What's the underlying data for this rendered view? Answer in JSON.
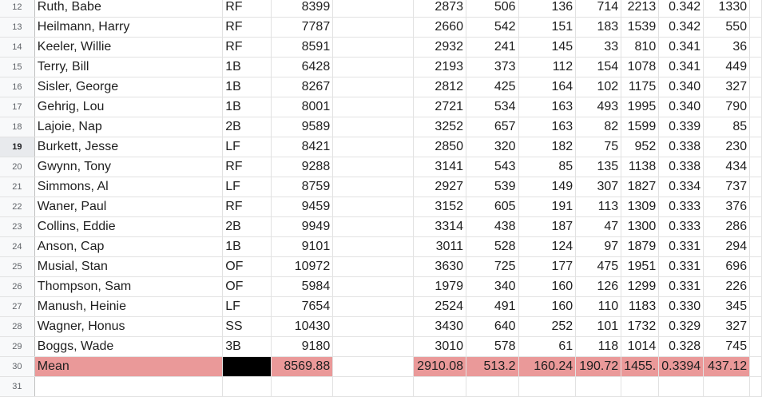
{
  "sheet": {
    "rows": [
      {
        "n": "12",
        "name": "Ruth, Babe",
        "pos": "RF",
        "ab": "8399",
        "h": "2873",
        "d": "506",
        "t": "136",
        "hr": "714",
        "rbi": "2213",
        "avg": "0.342",
        "bb": "1330"
      },
      {
        "n": "13",
        "name": "Heilmann, Harry",
        "pos": "RF",
        "ab": "7787",
        "h": "2660",
        "d": "542",
        "t": "151",
        "hr": "183",
        "rbi": "1539",
        "avg": "0.342",
        "bb": "550"
      },
      {
        "n": "14",
        "name": "Keeler, Willie",
        "pos": "RF",
        "ab": "8591",
        "h": "2932",
        "d": "241",
        "t": "145",
        "hr": "33",
        "rbi": "810",
        "avg": "0.341",
        "bb": "36"
      },
      {
        "n": "15",
        "name": "Terry, Bill",
        "pos": "1B",
        "ab": "6428",
        "h": "2193",
        "d": "373",
        "t": "112",
        "hr": "154",
        "rbi": "1078",
        "avg": "0.341",
        "bb": "449"
      },
      {
        "n": "16",
        "name": "Sisler, George",
        "pos": "1B",
        "ab": "8267",
        "h": "2812",
        "d": "425",
        "t": "164",
        "hr": "102",
        "rbi": "1175",
        "avg": "0.340",
        "bb": "327"
      },
      {
        "n": "17",
        "name": "Gehrig, Lou",
        "pos": "1B",
        "ab": "8001",
        "h": "2721",
        "d": "534",
        "t": "163",
        "hr": "493",
        "rbi": "1995",
        "avg": "0.340",
        "bb": "790"
      },
      {
        "n": "18",
        "name": "Lajoie, Nap",
        "pos": "2B",
        "ab": "9589",
        "h": "3252",
        "d": "657",
        "t": "163",
        "hr": "82",
        "rbi": "1599",
        "avg": "0.339",
        "bb": "85"
      },
      {
        "n": "19",
        "name": "Burkett, Jesse",
        "pos": "LF",
        "ab": "8421",
        "h": "2850",
        "d": "320",
        "t": "182",
        "hr": "75",
        "rbi": "952",
        "avg": "0.338",
        "bb": "230",
        "selected": true
      },
      {
        "n": "20",
        "name": "Gwynn, Tony",
        "pos": "RF",
        "ab": "9288",
        "h": "3141",
        "d": "543",
        "t": "85",
        "hr": "135",
        "rbi": "1138",
        "avg": "0.338",
        "bb": "434"
      },
      {
        "n": "21",
        "name": "Simmons, Al",
        "pos": "LF",
        "ab": "8759",
        "h": "2927",
        "d": "539",
        "t": "149",
        "hr": "307",
        "rbi": "1827",
        "avg": "0.334",
        "bb": "737"
      },
      {
        "n": "22",
        "name": "Waner, Paul",
        "pos": "RF",
        "ab": "9459",
        "h": "3152",
        "d": "605",
        "t": "191",
        "hr": "113",
        "rbi": "1309",
        "avg": "0.333",
        "bb": "376"
      },
      {
        "n": "23",
        "name": "Collins, Eddie",
        "pos": "2B",
        "ab": "9949",
        "h": "3314",
        "d": "438",
        "t": "187",
        "hr": "47",
        "rbi": "1300",
        "avg": "0.333",
        "bb": "286"
      },
      {
        "n": "24",
        "name": "Anson, Cap",
        "pos": "1B",
        "ab": "9101",
        "h": "3011",
        "d": "528",
        "t": "124",
        "hr": "97",
        "rbi": "1879",
        "avg": "0.331",
        "bb": "294"
      },
      {
        "n": "25",
        "name": "Musial, Stan",
        "pos": "OF",
        "ab": "10972",
        "h": "3630",
        "d": "725",
        "t": "177",
        "hr": "475",
        "rbi": "1951",
        "avg": "0.331",
        "bb": "696"
      },
      {
        "n": "26",
        "name": "Thompson, Sam",
        "pos": "OF",
        "ab": "5984",
        "h": "1979",
        "d": "340",
        "t": "160",
        "hr": "126",
        "rbi": "1299",
        "avg": "0.331",
        "bb": "226"
      },
      {
        "n": "27",
        "name": "Manush, Heinie",
        "pos": "LF",
        "ab": "7654",
        "h": "2524",
        "d": "491",
        "t": "160",
        "hr": "110",
        "rbi": "1183",
        "avg": "0.330",
        "bb": "345"
      },
      {
        "n": "28",
        "name": "Wagner, Honus",
        "pos": "SS",
        "ab": "10430",
        "h": "3430",
        "d": "640",
        "t": "252",
        "hr": "101",
        "rbi": "1732",
        "avg": "0.329",
        "bb": "327"
      },
      {
        "n": "29",
        "name": "Boggs, Wade",
        "pos": "3B",
        "ab": "9180",
        "h": "3010",
        "d": "578",
        "t": "61",
        "hr": "118",
        "rbi": "1014",
        "avg": "0.328",
        "bb": "745"
      }
    ],
    "mean": {
      "n": "30",
      "name": "Mean",
      "pos": "",
      "ab": "8569.88",
      "h": "2910.08",
      "d": "513.2",
      "t": "160.24",
      "hr": "190.72",
      "rbi": "1455.",
      "avg": "0.3394",
      "bb": "437.12"
    },
    "empty_row": {
      "n": "31"
    }
  },
  "colors": {
    "mean_fill": "#ea9999",
    "header_bg": "#f8f9fa",
    "gridline": "#e2e2e2"
  }
}
